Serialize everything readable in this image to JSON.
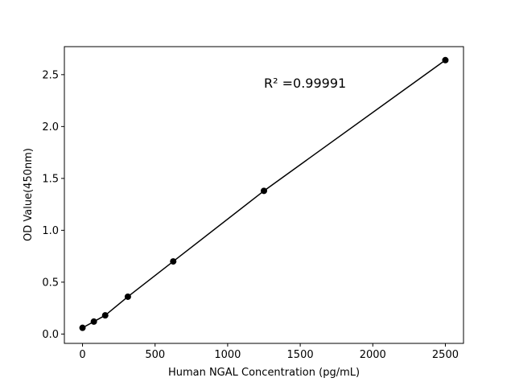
{
  "chart_data": {
    "type": "line",
    "x_label": "Human NGAL Concentration (pg/mL)",
    "y_label": "OD Value(450nm)",
    "annotation": "R² =0.99991",
    "annotation_pos": [
      1250,
      2.42
    ],
    "x": [
      0,
      78.125,
      156.25,
      312.5,
      625,
      1250,
      2500
    ],
    "values": [
      0.06,
      0.12,
      0.18,
      0.36,
      0.7,
      1.38,
      2.64
    ],
    "color": "#000000",
    "marker": "circle",
    "xlim": [
      -125,
      2625
    ],
    "ylim": [
      -0.09,
      2.77
    ],
    "xticks": [
      0,
      500,
      1000,
      1500,
      2000,
      2500
    ],
    "yticks": [
      {
        "value": 0,
        "label": "0.0"
      },
      {
        "value": 0.5,
        "label": "0.5"
      },
      {
        "value": 1,
        "label": "1.0"
      },
      {
        "value": 1.5,
        "label": "1.5"
      },
      {
        "value": 2,
        "label": "2.0"
      },
      {
        "value": 2.5,
        "label": "2.5"
      }
    ],
    "grid": false
  }
}
